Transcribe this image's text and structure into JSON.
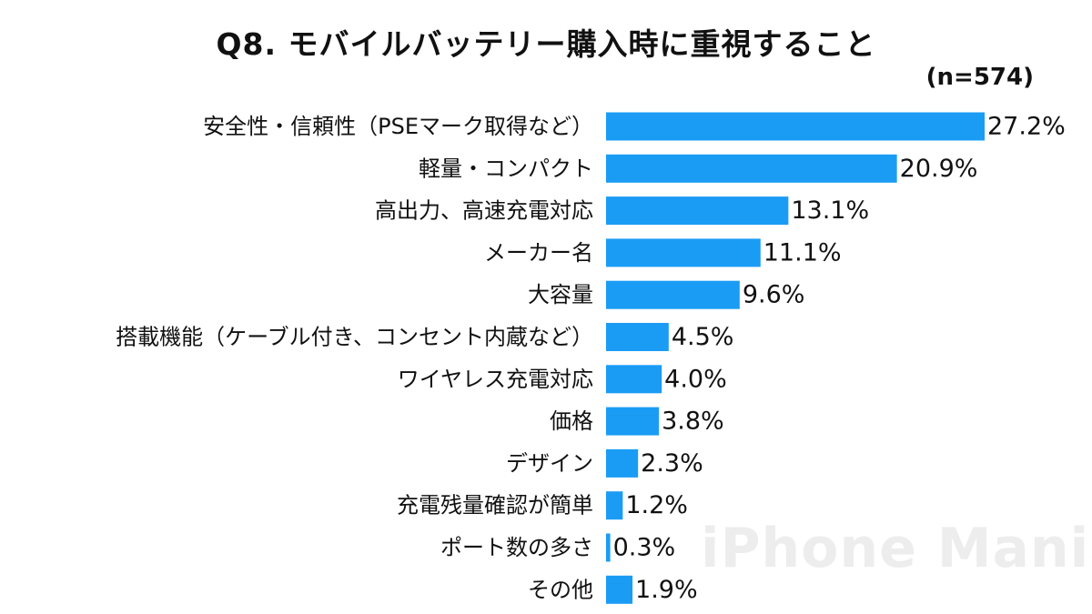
{
  "title": "Q8. モバイルバッテリー購入時に重視すること",
  "sample_size": "(n=574)",
  "watermark": "iPhone Mania",
  "chart_data": {
    "type": "bar",
    "orientation": "horizontal",
    "categories": [
      "安全性・信頼性（PSEマーク取得など）",
      "軽量・コンパクト",
      "高出力、高速充電対応",
      "メーカー名",
      "大容量",
      "搭載機能（ケーブル付き、コンセント内蔵など）",
      "ワイヤレス充電対応",
      "価格",
      "デザイン",
      "充電残量確認が簡単",
      "ポート数の多さ",
      "その他"
    ],
    "values": [
      27.2,
      20.9,
      13.1,
      11.1,
      9.6,
      4.5,
      4.0,
      3.8,
      2.3,
      1.2,
      0.3,
      1.9
    ],
    "value_labels": [
      "27.2%",
      "20.9%",
      "13.1%",
      "11.1%",
      "9.6%",
      "4.5%",
      "4.0%",
      "3.8%",
      "2.3%",
      "1.2%",
      "0.3%",
      "1.9%"
    ],
    "bar_color": "#1a9cf5",
    "xlim": [
      0,
      27.2
    ],
    "grid": false,
    "legend": "none"
  }
}
